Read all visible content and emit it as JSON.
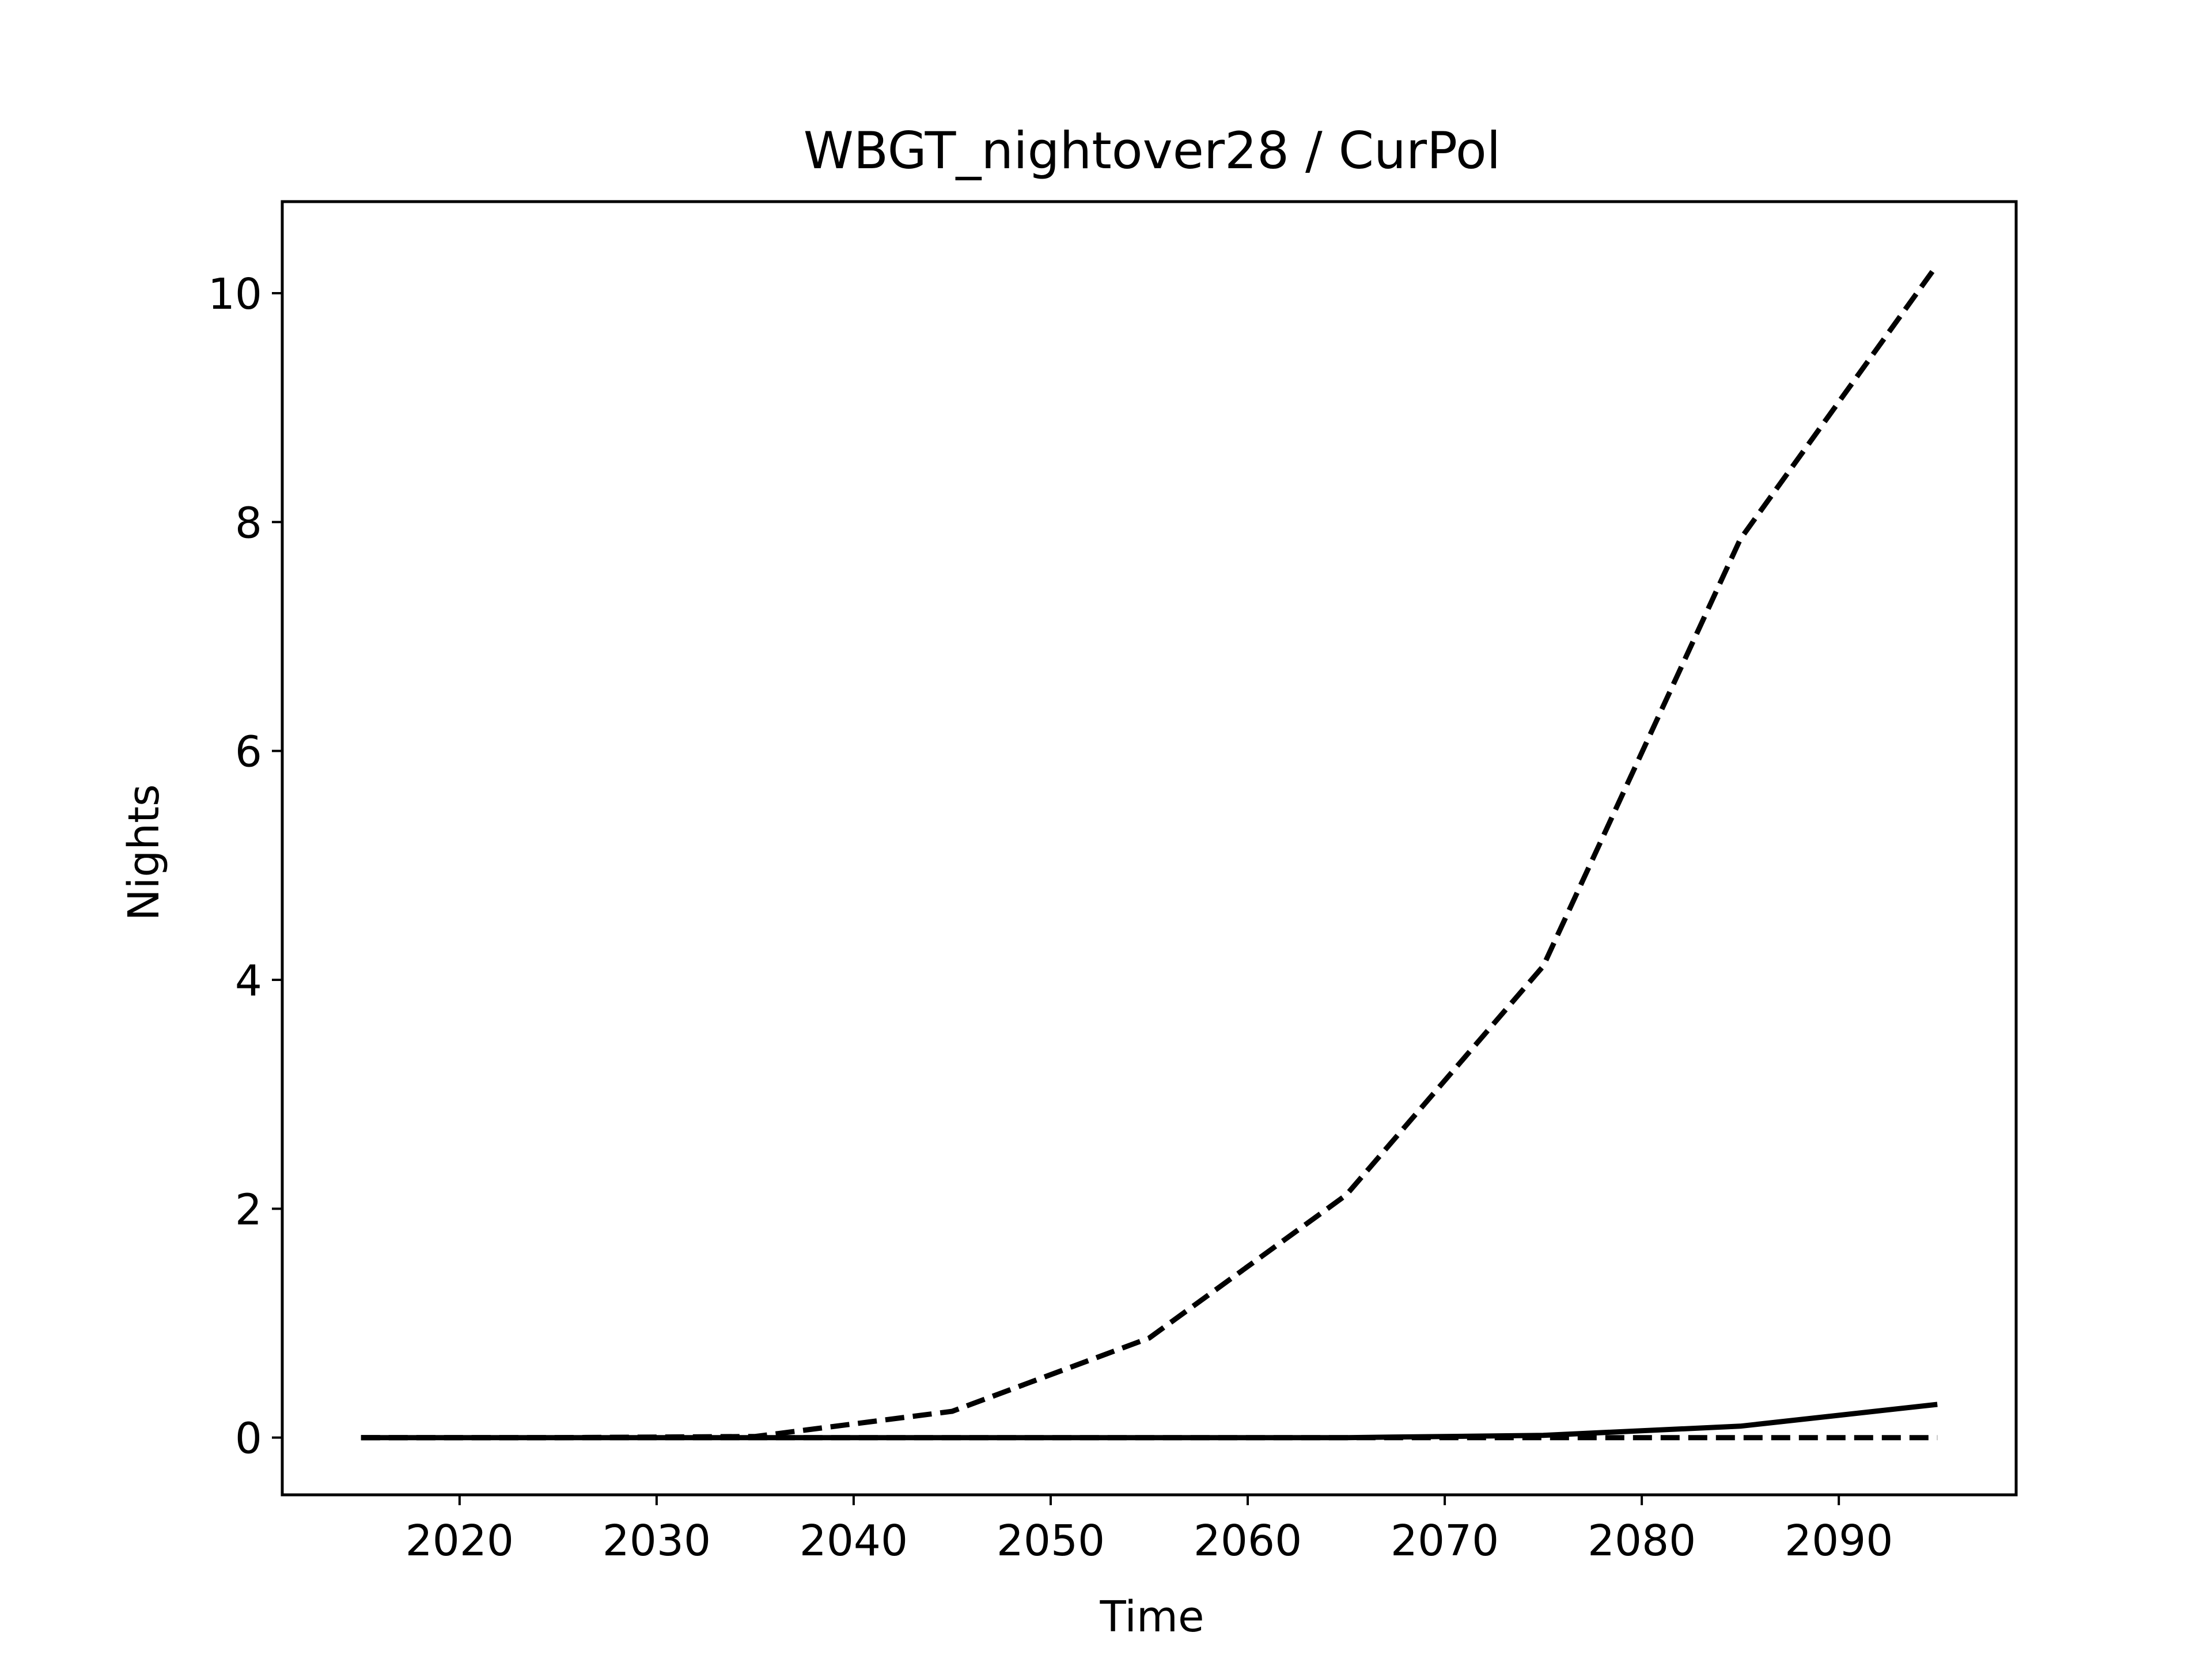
{
  "chart_data": {
    "type": "line",
    "title": "WBGT_nightover28 / CurPol",
    "xlabel": "Time",
    "ylabel": "Nights",
    "xlim": [
      2011,
      2099
    ],
    "ylim": [
      -0.5,
      10.8
    ],
    "x_ticks": [
      2020,
      2030,
      2040,
      2050,
      2060,
      2070,
      2080,
      2090
    ],
    "y_ticks": [
      0,
      2,
      4,
      6,
      8,
      10
    ],
    "grid": false,
    "legend": "none",
    "x": [
      2015,
      2025,
      2035,
      2045,
      2055,
      2065,
      2075,
      2085,
      2095
    ],
    "series": [
      {
        "style": "dashed",
        "color": "#000000",
        "values": [
          0,
          0,
          0.01,
          0.23,
          0.87,
          2.12,
          4.12,
          7.85,
          10.25
        ]
      },
      {
        "style": "solid",
        "color": "#000000",
        "values": [
          0,
          0,
          0,
          0,
          0,
          0,
          0.02,
          0.1,
          0.29
        ]
      },
      {
        "style": "dashed",
        "color": "#000000",
        "values": [
          0,
          0,
          0,
          0,
          0,
          0,
          0,
          0,
          0
        ]
      }
    ]
  }
}
